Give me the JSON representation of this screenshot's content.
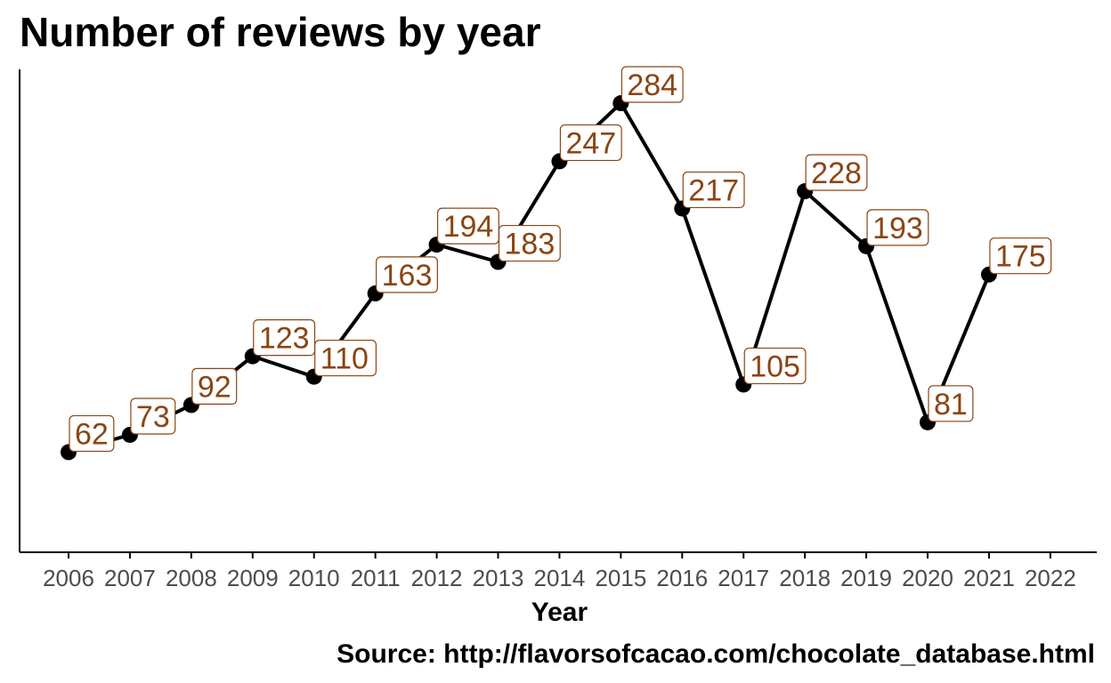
{
  "chart_data": {
    "type": "line",
    "title": "Number of reviews by year",
    "xlabel": "Year",
    "ylabel": "",
    "caption": "Source: http://flavorsofcacao.com/chocolate_database.html",
    "x_ticks": [
      "2006",
      "2007",
      "2008",
      "2009",
      "2010",
      "2011",
      "2012",
      "2013",
      "2014",
      "2015",
      "2016",
      "2017",
      "2018",
      "2019",
      "2020",
      "2021",
      "2022"
    ],
    "x": [
      2006,
      2007,
      2008,
      2009,
      2010,
      2011,
      2012,
      2013,
      2014,
      2015,
      2016,
      2017,
      2018,
      2019,
      2020,
      2021
    ],
    "y": [
      62,
      73,
      92,
      123,
      110,
      163,
      194,
      183,
      247,
      284,
      217,
      105,
      228,
      193,
      81,
      175
    ],
    "data_labels": [
      "62",
      "73",
      "92",
      "123",
      "110",
      "163",
      "194",
      "183",
      "247",
      "284",
      "217",
      "105",
      "228",
      "193",
      "81",
      "175"
    ],
    "y_axis_ticks_shown": false,
    "grid": false,
    "legend": "none",
    "colors": {
      "line": "#000000",
      "point": "#000000",
      "label_text": "#8B4513",
      "label_border": "#8B4513",
      "label_fill": "#ffffff",
      "axis": "#000000",
      "tick_text": "#4d4d4d"
    }
  }
}
